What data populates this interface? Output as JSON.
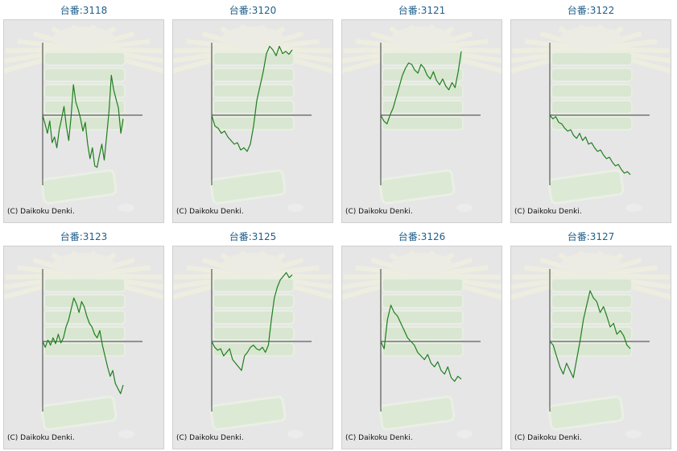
{
  "colors": {
    "line": "#1f7f1f",
    "axis": "#3c3c3c",
    "background": "#e6e6e6",
    "title": "#1f5f8b"
  },
  "copyright": "(C) Daikoku Denki.",
  "chart_data": [
    {
      "type": "line",
      "title": "台番:3118",
      "series": [
        {
          "values": [
            0,
            -12,
            -25,
            -8,
            -38,
            -30,
            -45,
            -20,
            -5,
            12,
            -15,
            -35,
            -2,
            42,
            18,
            8,
            -5,
            -22,
            -10,
            -40,
            -60,
            -45,
            -70,
            -72,
            -55,
            -40,
            -62,
            -30,
            5,
            55,
            35,
            22,
            10,
            -25,
            -5
          ]
        }
      ]
    },
    {
      "type": "line",
      "title": "台番:3120",
      "series": [
        {
          "values": [
            0,
            -15,
            -18,
            -25,
            -22,
            -30,
            -35,
            -40,
            -38,
            -48,
            -45,
            -50,
            -40,
            -15,
            20,
            40,
            60,
            85,
            95,
            90,
            82,
            95,
            85,
            88,
            84,
            90
          ]
        }
      ]
    },
    {
      "type": "line",
      "title": "台番:3121",
      "series": [
        {
          "values": [
            0,
            -8,
            -12,
            0,
            10,
            25,
            40,
            55,
            65,
            72,
            70,
            62,
            58,
            70,
            65,
            55,
            50,
            60,
            48,
            42,
            50,
            40,
            35,
            45,
            38,
            60,
            88
          ]
        }
      ]
    },
    {
      "type": "line",
      "title": "台番:3122",
      "series": [
        {
          "values": [
            0,
            -5,
            -2,
            -10,
            -12,
            -18,
            -22,
            -20,
            -28,
            -32,
            -25,
            -35,
            -30,
            -40,
            -38,
            -45,
            -50,
            -48,
            -55,
            -60,
            -58,
            -65,
            -70,
            -68,
            -75,
            -80,
            -78,
            -82
          ]
        }
      ]
    },
    {
      "type": "line",
      "title": "台番:3123",
      "series": [
        {
          "values": [
            0,
            -8,
            2,
            -5,
            5,
            -3,
            10,
            -2,
            5,
            20,
            30,
            45,
            60,
            52,
            40,
            55,
            48,
            35,
            25,
            20,
            10,
            5,
            15,
            -5,
            -20,
            -35,
            -48,
            -40,
            -58,
            -65,
            -72,
            -60
          ]
        }
      ]
    },
    {
      "type": "line",
      "title": "台番:3125",
      "series": [
        {
          "values": [
            0,
            -8,
            -12,
            -10,
            -20,
            -15,
            -10,
            -25,
            -30,
            -35,
            -40,
            -20,
            -15,
            -8,
            -5,
            -10,
            -12,
            -8,
            -15,
            -5,
            30,
            60,
            75,
            85,
            90,
            95,
            88,
            92
          ]
        }
      ]
    },
    {
      "type": "line",
      "title": "台番:3126",
      "series": [
        {
          "values": [
            0,
            -10,
            30,
            50,
            40,
            35,
            25,
            15,
            5,
            0,
            -5,
            -15,
            -20,
            -25,
            -18,
            -30,
            -35,
            -28,
            -40,
            -45,
            -35,
            -50,
            -55,
            -48,
            -52
          ]
        }
      ]
    },
    {
      "type": "line",
      "title": "台番:3127",
      "series": [
        {
          "values": [
            0,
            -5,
            -20,
            -35,
            -45,
            -30,
            -40,
            -50,
            -25,
            0,
            30,
            50,
            70,
            60,
            55,
            40,
            48,
            35,
            20,
            25,
            10,
            15,
            8,
            -5,
            -10
          ]
        }
      ]
    }
  ]
}
